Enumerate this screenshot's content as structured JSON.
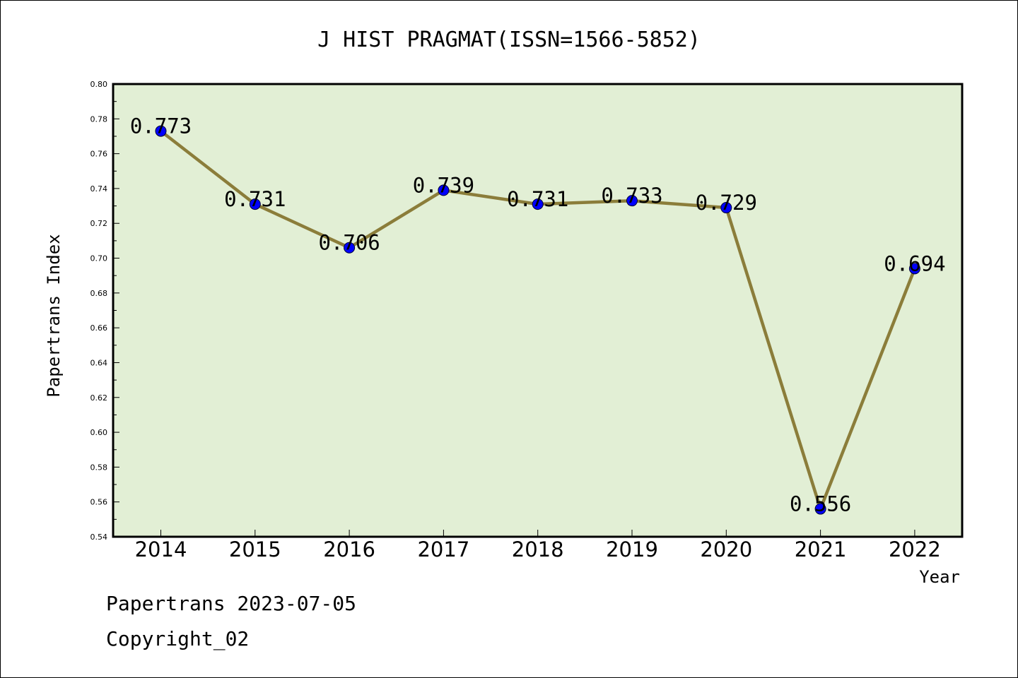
{
  "footer": {
    "line1": "Papertrans 2023-07-05",
    "line2": "Copyright_02"
  },
  "colors": {
    "plot_background": "#e2efd5",
    "line": "#8b7d3a",
    "marker": "#0000ff"
  },
  "chart_data": {
    "type": "line",
    "title": "J HIST PRAGMAT(ISSN=1566-5852)",
    "xlabel": "Year",
    "ylabel": "Papertrans Index",
    "categories": [
      "2014",
      "2015",
      "2016",
      "2017",
      "2018",
      "2019",
      "2020",
      "2021",
      "2022"
    ],
    "values": [
      0.773,
      0.731,
      0.706,
      0.739,
      0.731,
      0.733,
      0.729,
      0.556,
      0.694
    ],
    "data_labels": [
      "0.773",
      "0.731",
      "0.706",
      "0.739",
      "0.731",
      "0.733",
      "0.729",
      "0.556",
      "0.694"
    ],
    "ylim": [
      0.54,
      0.8
    ],
    "yticks": [
      "0.54",
      "0.56",
      "0.58",
      "0.60",
      "0.62",
      "0.64",
      "0.66",
      "0.68",
      "0.70",
      "0.72",
      "0.74",
      "0.76",
      "0.78",
      "0.80"
    ],
    "grid": false,
    "legend": "none"
  }
}
